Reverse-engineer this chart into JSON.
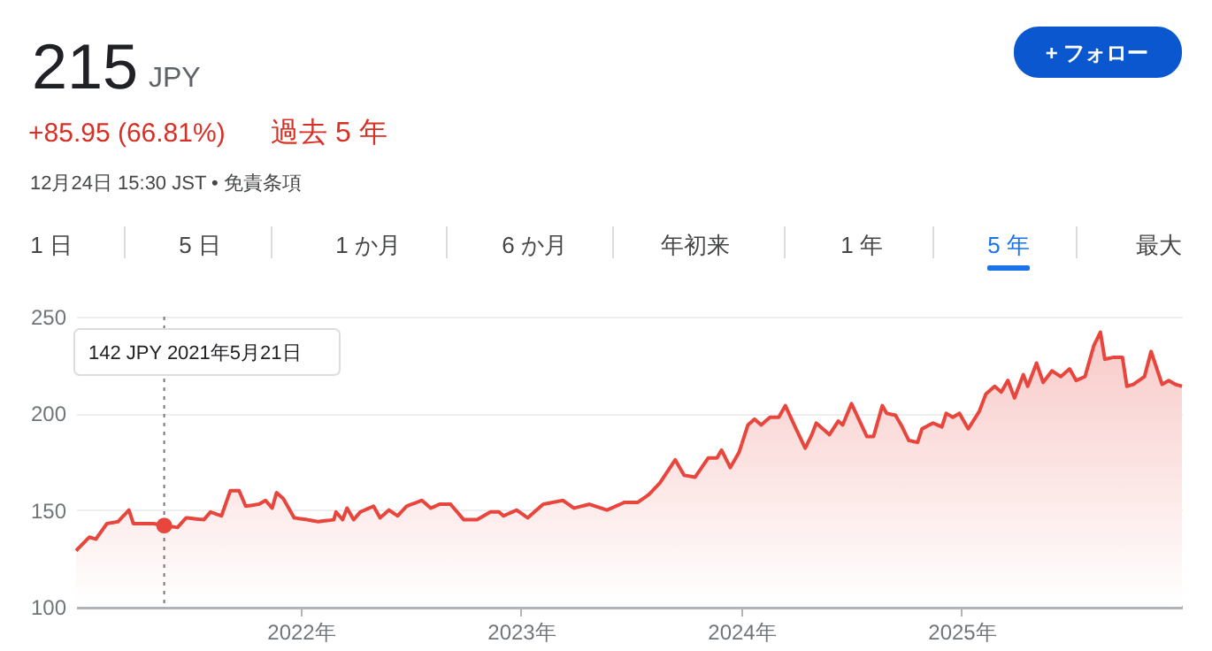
{
  "chart_data": {
    "type": "area",
    "annotations": [
      "215",
      "JPY",
      "+85.95 (66.81%)",
      "過去 5 年",
      "12月24日 15:30 JST • 免責条項",
      "1 日",
      "5 日",
      "1 か月",
      "6 か月",
      "年初来",
      "1 年",
      "5 年",
      "最大",
      "+ フォロー",
      "142 JPY  2021年5月21日"
    ],
    "series": [
      {
        "color": "#e8453c",
        "x": [
          2020.98,
          2021.04,
          2021.07,
          2021.12,
          2021.17,
          2021.22,
          2021.24,
          2021.33,
          2021.38,
          2021.44,
          2021.48,
          2021.56,
          2021.59,
          2021.64,
          2021.68,
          2021.72,
          2021.75,
          2021.81,
          2021.84,
          2021.87,
          2021.89,
          2021.92,
          2021.97,
          2022.03,
          2022.08,
          2022.15,
          2022.16,
          2022.19,
          2022.21,
          2022.24,
          2022.27,
          2022.33,
          2022.36,
          2022.4,
          2022.44,
          2022.48,
          2022.55,
          2022.59,
          2022.63,
          2022.68,
          2022.74,
          2022.8,
          2022.86,
          2022.9,
          2022.92,
          2022.98,
          2023.03,
          2023.07,
          2023.1,
          2023.19,
          2023.24,
          2023.31,
          2023.39,
          2023.47,
          2023.53,
          2023.58,
          2023.63,
          2023.7,
          2023.74,
          2023.79,
          2023.85,
          2023.89,
          2023.91,
          2023.95,
          2023.99,
          2024.03,
          2024.06,
          2024.09,
          2024.13,
          2024.17,
          2024.2,
          2024.24,
          2024.29,
          2024.32,
          2024.34,
          2024.4,
          2024.44,
          2024.46,
          2024.5,
          2024.57,
          2024.6,
          2024.64,
          2024.66,
          2024.7,
          2024.73,
          2024.76,
          2024.8,
          2024.82,
          2024.87,
          2024.91,
          2024.93,
          2024.96,
          2024.99,
          2025.03,
          2025.08,
          2025.11,
          2025.15,
          2025.18,
          2025.21,
          2025.24,
          2025.28,
          2025.3,
          2025.34,
          2025.37,
          2025.41,
          2025.45,
          2025.49,
          2025.52,
          2025.56,
          2025.6,
          2025.63,
          2025.65,
          2025.69,
          2025.73,
          2025.75,
          2025.78,
          2025.83,
          2025.86,
          2025.91,
          2025.94,
          2025.97,
          2026.0
        ],
        "values": [
          129,
          136,
          135,
          143,
          144,
          150,
          143,
          143,
          142,
          141,
          146,
          145,
          149,
          147,
          160,
          160,
          152,
          153,
          155,
          151,
          159,
          156,
          146,
          145,
          144,
          145,
          149,
          145,
          151,
          145,
          149,
          152,
          146,
          150,
          147,
          152,
          155,
          151,
          153,
          153,
          145,
          145,
          149,
          149,
          147,
          150,
          146,
          150,
          153,
          155,
          151,
          153,
          150,
          154,
          154,
          158,
          164,
          176,
          168,
          167,
          177,
          177,
          181,
          172,
          180,
          194,
          197,
          194,
          198,
          198,
          204,
          194,
          182,
          189,
          195,
          189,
          196,
          194,
          205,
          188,
          188,
          204,
          200,
          199,
          193,
          186,
          185,
          192,
          195,
          193,
          200,
          198,
          200,
          192,
          201,
          210,
          214,
          211,
          217,
          208,
          220,
          214,
          226,
          216,
          222,
          219,
          223,
          217,
          219,
          235,
          242,
          228,
          229,
          229,
          214,
          215,
          219,
          232,
          215,
          217,
          215,
          214
        ]
      },
      {
        "type": "scatter",
        "color": "#e8453c",
        "marker": "circle",
        "x": [
          2021.38
        ],
        "values": [
          142
        ]
      }
    ],
    "ref_lines": [
      {
        "axis": "x",
        "value": 2021.38,
        "color": "#757575",
        "line_style": "dotted"
      }
    ],
    "xlim": [
      2020.98,
      2026.0
    ],
    "xticks": [
      {
        "value": 2022,
        "label": "2022年"
      },
      {
        "value": 2023,
        "label": "2023年"
      },
      {
        "value": 2024,
        "label": "2024年"
      },
      {
        "value": 2025,
        "label": "2025年"
      }
    ],
    "ylim": [
      100,
      250
    ],
    "yticks": [
      100,
      150,
      200,
      250
    ],
    "grid": "y"
  }
}
